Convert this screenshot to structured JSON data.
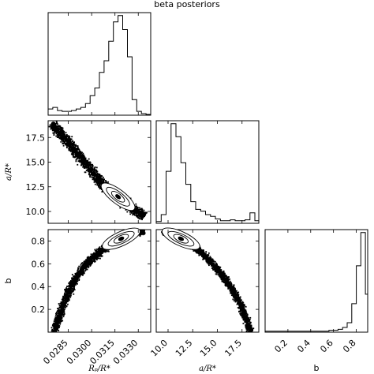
{
  "title": "beta posteriors",
  "chart_data": {
    "type": "corner",
    "parameters": [
      {
        "key": "rp",
        "label": "R_p/R_*",
        "display_label": "Rₚ/R*",
        "range": [
          0.0272,
          0.0338
        ],
        "ticks": [
          0.0285,
          0.03,
          0.0315,
          0.033
        ],
        "tick_labels": [
          "0.0285",
          "0.0300",
          "0.0315",
          "0.0330"
        ]
      },
      {
        "key": "a",
        "label": "a/R_*",
        "display_label": "a/R*",
        "range": [
          8.8,
          19.2
        ],
        "ticks": [
          10.0,
          12.5,
          15.0,
          17.5
        ],
        "tick_labels": [
          "10.0",
          "12.5",
          "15.0",
          "17.5"
        ]
      },
      {
        "key": "b",
        "label": "b",
        "display_label": "b",
        "range": [
          0.0,
          0.9
        ],
        "ticks": [
          0.2,
          0.4,
          0.6,
          0.8
        ],
        "tick_labels": [
          "0.2",
          "0.4",
          "0.6",
          "0.8"
        ]
      }
    ],
    "histograms": [
      {
        "param": "rp",
        "bin_edges": [
          0.0272,
          0.0275,
          0.0278,
          0.0281,
          0.0284,
          0.0287,
          0.029,
          0.0293,
          0.0296,
          0.0299,
          0.0302,
          0.0305,
          0.0308,
          0.0311,
          0.0314,
          0.0317,
          0.032,
          0.0323,
          0.0326,
          0.0329,
          0.0332,
          0.0335,
          0.0338
        ],
        "counts": [
          8,
          10,
          6,
          5,
          5,
          6,
          8,
          10,
          15,
          25,
          35,
          55,
          70,
          95,
          120,
          128,
          110,
          75,
          20,
          5,
          2,
          1
        ]
      },
      {
        "param": "a",
        "bin_edges": [
          8.8,
          9.3,
          9.8,
          10.3,
          10.8,
          11.3,
          11.8,
          12.3,
          12.8,
          13.3,
          13.8,
          14.3,
          14.8,
          15.3,
          15.8,
          16.3,
          16.8,
          17.3,
          17.8,
          18.3,
          18.8,
          19.2
        ],
        "counts": [
          2,
          10,
          60,
          115,
          100,
          70,
          45,
          25,
          16,
          14,
          10,
          8,
          5,
          3,
          3,
          4,
          3,
          3,
          4,
          12,
          3
        ]
      },
      {
        "param": "b",
        "bin_edges": [
          0.0,
          0.04,
          0.08,
          0.12,
          0.16,
          0.2,
          0.24,
          0.28,
          0.32,
          0.36,
          0.4,
          0.44,
          0.48,
          0.52,
          0.56,
          0.6,
          0.64,
          0.68,
          0.72,
          0.76,
          0.8,
          0.84,
          0.88,
          0.9
        ],
        "counts": [
          1,
          1,
          1,
          1,
          1,
          1,
          1,
          1,
          1,
          1,
          1,
          1,
          1,
          1,
          2,
          2,
          3,
          5,
          10,
          30,
          70,
          105,
          40
        ]
      }
    ],
    "pair_relations": {
      "a_vs_rp": {
        "trend": "negative",
        "points": [
          [
            0.0274,
            18.9
          ],
          [
            0.028,
            17.9
          ],
          [
            0.0286,
            16.8
          ],
          [
            0.0292,
            15.6
          ],
          [
            0.0298,
            14.5
          ],
          [
            0.0304,
            13.3
          ],
          [
            0.031,
            12.3
          ],
          [
            0.0316,
            11.5
          ],
          [
            0.0322,
            10.8
          ],
          [
            0.0328,
            10.1
          ],
          [
            0.0334,
            9.5
          ]
        ],
        "mode": [
          0.0317,
          11.5
        ]
      },
      "b_vs_rp": {
        "trend": "arc",
        "points": [
          [
            0.0276,
            0.0
          ],
          [
            0.0279,
            0.12
          ],
          [
            0.0282,
            0.25
          ],
          [
            0.0286,
            0.38
          ],
          [
            0.0291,
            0.5
          ],
          [
            0.0297,
            0.6
          ],
          [
            0.0303,
            0.68
          ],
          [
            0.031,
            0.75
          ],
          [
            0.0317,
            0.81
          ],
          [
            0.0325,
            0.86
          ],
          [
            0.0334,
            0.89
          ]
        ],
        "mode": [
          0.0319,
          0.82
        ]
      },
      "b_vs_a": {
        "trend": "arc",
        "points": [
          [
            9.4,
            0.89
          ],
          [
            10.5,
            0.86
          ],
          [
            11.5,
            0.82
          ],
          [
            12.5,
            0.76
          ],
          [
            13.5,
            0.69
          ],
          [
            14.5,
            0.6
          ],
          [
            15.5,
            0.5
          ],
          [
            16.5,
            0.38
          ],
          [
            17.3,
            0.25
          ],
          [
            17.9,
            0.12
          ],
          [
            18.4,
            0.0
          ]
        ],
        "mode": [
          11.3,
          0.82
        ]
      }
    }
  }
}
